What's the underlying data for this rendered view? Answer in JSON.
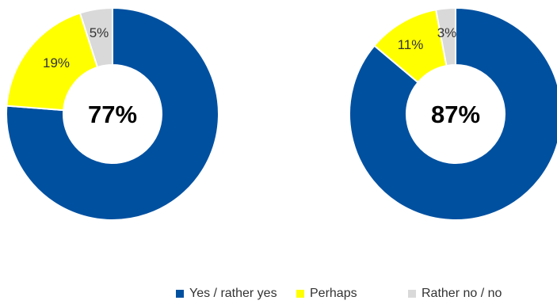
{
  "chart_data": [
    {
      "type": "pie",
      "donut": true,
      "center_label": "77%",
      "slices": [
        {
          "label": "Yes / rather yes",
          "value": 77,
          "data_label": ""
        },
        {
          "label": "Perhaps",
          "value": 19,
          "data_label": "19%"
        },
        {
          "label": "Rather no / no",
          "value": 5,
          "data_label": "5%"
        }
      ]
    },
    {
      "type": "pie",
      "donut": true,
      "center_label": "87%",
      "slices": [
        {
          "label": "Yes / rather yes",
          "value": 87,
          "data_label": ""
        },
        {
          "label": "Perhaps",
          "value": 11,
          "data_label": "11%"
        },
        {
          "label": "Rather no / no",
          "value": 3,
          "data_label": "3%"
        }
      ]
    }
  ],
  "legend": {
    "items": [
      {
        "label": "Yes / rather yes",
        "color": "#0050A0"
      },
      {
        "label": "Perhaps",
        "color": "#FFFF00"
      },
      {
        "label": "Rather no / no",
        "color": "#D9D9D9"
      }
    ]
  },
  "colors": {
    "yes": "#0050A0",
    "perhaps": "#FFFF00",
    "no": "#D9D9D9"
  }
}
